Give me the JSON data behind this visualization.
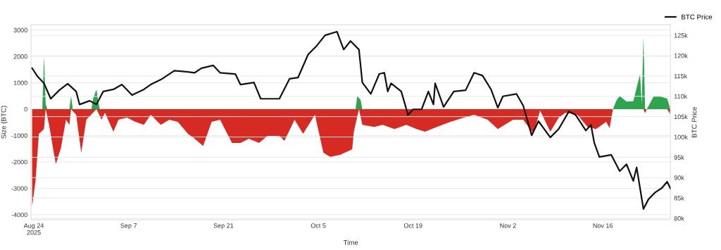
{
  "chart_data": {
    "type": "area",
    "xlabel": "Time",
    "ylabel": "Size (BTC)",
    "y2label": "BTC Price",
    "xlim": [
      "2025-08-23T14:00",
      "2025-11-26T00:00"
    ],
    "xticks": [
      {
        "value": "2025-08-24",
        "label": "Aug 24\n2025"
      },
      {
        "value": "2025-09-07",
        "label": "Sep 7"
      },
      {
        "value": "2025-09-21",
        "label": "Sep 21"
      },
      {
        "value": "2025-10-05",
        "label": "Oct 5"
      },
      {
        "value": "2025-10-19",
        "label": "Oct 19"
      },
      {
        "value": "2025-11-02",
        "label": "Nov 2"
      },
      {
        "value": "2025-11-16",
        "label": "Nov 16"
      }
    ],
    "ylim": [
      -4190,
      3200
    ],
    "yticks": [
      -4000,
      -3000,
      -2000,
      -1000,
      0,
      1000,
      2000,
      3000
    ],
    "y2lim": [
      79650,
      127600
    ],
    "y2ticks": [
      {
        "value": 80000,
        "label": "80k"
      },
      {
        "value": 85000,
        "label": "85k"
      },
      {
        "value": 90000,
        "label": "90k"
      },
      {
        "value": 95000,
        "label": "95k"
      },
      {
        "value": 100000,
        "label": "100k"
      },
      {
        "value": 105000,
        "label": "105k"
      },
      {
        "value": 110000,
        "label": "110k"
      },
      {
        "value": 115000,
        "label": "115k"
      },
      {
        "value": 120000,
        "label": "120k"
      },
      {
        "value": 125000,
        "label": "125k"
      }
    ],
    "grid": "y",
    "legend": "top right",
    "marker": "none",
    "line_style": "solid",
    "series": [
      {
        "color": "#d62a22",
        "x": [
          "2025-08-23T18:00",
          "2025-08-24T06:00",
          "2025-08-24T18:00",
          "2025-08-25T12:00",
          "2025-08-25T18:00",
          "2025-08-26T06:00",
          "2025-08-27T00:00",
          "2025-08-27T06:00",
          "2025-08-28T00:00",
          "2025-08-28T18:00",
          "2025-08-29T06:00",
          "2025-08-29T12:00",
          "2025-08-30T06:00",
          "2025-08-31T00:00",
          "2025-08-31T18:00",
          "2025-09-01T18:00",
          "2025-09-02T06:00",
          "2025-09-03T00:00",
          "2025-09-03T12:00",
          "2025-09-04T18:00",
          "2025-09-05T12:00",
          "2025-09-06T18:00",
          "2025-09-08T00:00",
          "2025-09-09T06:00",
          "2025-09-10T06:00",
          "2025-09-11T18:00",
          "2025-09-13T00:00",
          "2025-09-14T06:00",
          "2025-09-15T18:00",
          "2025-09-16T18:00",
          "2025-09-18T00:00",
          "2025-09-19T06:00",
          "2025-09-20T12:00",
          "2025-09-22T06:00",
          "2025-09-23T12:00",
          "2025-09-24T18:00",
          "2025-09-26T06:00",
          "2025-09-27T12:00",
          "2025-09-29T06:00",
          "2025-09-30T00:00",
          "2025-10-01T12:00",
          "2025-10-02T18:00",
          "2025-10-04T12:00",
          "2025-10-05T18:00",
          "2025-10-06T18:00",
          "2025-10-08T06:00",
          "2025-10-10T00:00",
          "2025-10-10T06:00",
          "2025-10-11T00:00",
          "2025-10-11T12:00",
          "2025-10-13T06:00",
          "2025-10-14T12:00",
          "2025-10-16T06:00",
          "2025-10-18T00:00",
          "2025-10-19T12:00",
          "2025-10-20T18:00",
          "2025-10-22T12:00",
          "2025-10-24T12:00",
          "2025-10-26T12:00",
          "2025-10-28T00:00",
          "2025-10-30T00:00",
          "2025-10-31T12:00",
          "2025-11-02T18:00",
          "2025-11-04T06:00",
          "2025-11-05T18:00",
          "2025-11-06T18:00",
          "2025-11-08T06:00",
          "2025-11-09T12:00",
          "2025-11-10T12:00",
          "2025-11-12T06:00",
          "2025-11-13T18:00",
          "2025-11-15T00:00",
          "2025-11-16T12:00",
          "2025-11-17T00:00",
          "2025-11-17T12:00",
          "2025-11-22T00:00",
          "2025-11-22T06:00",
          "2025-11-22T12:00",
          "2025-11-25T12:00",
          "2025-11-26T00:00"
        ],
        "values": [
          -3680,
          -2720,
          -930,
          -750,
          0,
          -590,
          -1730,
          -2080,
          -1470,
          -400,
          -590,
          0,
          -210,
          -1650,
          -400,
          -130,
          0,
          -400,
          -130,
          -850,
          -400,
          -320,
          -480,
          -590,
          -210,
          -590,
          -400,
          -480,
          -930,
          -1120,
          -1390,
          -480,
          -400,
          -1280,
          -1280,
          -1120,
          -1280,
          -1010,
          -1010,
          -1200,
          -400,
          -930,
          -210,
          -1650,
          -1810,
          -1730,
          -1520,
          -850,
          0,
          -590,
          -670,
          -590,
          -750,
          -590,
          -750,
          -850,
          -670,
          -480,
          -320,
          -210,
          -400,
          -750,
          -400,
          -400,
          -930,
          -50,
          -850,
          -320,
          -130,
          -210,
          -670,
          -750,
          -480,
          -720,
          0,
          0,
          -150,
          0,
          0,
          -200
        ]
      },
      {
        "color": "#2ea44f",
        "x": [
          "2025-08-25T06:00",
          "2025-08-25T12:00",
          "2025-08-25T18:00",
          "2025-08-26T00:00",
          "2025-08-29T06:00",
          "2025-08-29T12:00",
          "2025-08-29T18:00",
          "2025-09-01T12:00",
          "2025-09-01T18:00",
          "2025-09-02T06:00",
          "2025-09-02T12:00",
          "2025-09-02T18:00",
          "2025-10-10T12:00",
          "2025-10-10T18:00",
          "2025-10-11T06:00",
          "2025-10-11T12:00",
          "2025-11-17T12:00",
          "2025-11-18T00:00",
          "2025-11-18T12:00",
          "2025-11-19T12:00",
          "2025-11-20T12:00",
          "2025-11-21T12:00",
          "2025-11-21T18:00",
          "2025-11-22T00:00",
          "2025-11-22T06:00",
          "2025-11-22T12:00",
          "2025-11-23T12:00",
          "2025-11-24T12:00",
          "2025-11-25T12:00",
          "2025-11-26T00:00"
        ],
        "values": [
          0,
          2000,
          200,
          0,
          0,
          500,
          0,
          0,
          400,
          750,
          300,
          0,
          0,
          500,
          350,
          0,
          0,
          320,
          500,
          290,
          300,
          1330,
          200,
          2750,
          0,
          0,
          480,
          480,
          400,
          0
        ]
      },
      {
        "type": "line",
        "name": "BTC Price",
        "color": "#111111",
        "axis": "y2",
        "x": [
          "2025-08-23T18:00",
          "2025-08-24T12:00",
          "2025-08-25T12:00",
          "2025-08-26T12:00",
          "2025-08-27T18:00",
          "2025-08-29T00:00",
          "2025-08-30T06:00",
          "2025-08-30T18:00",
          "2025-09-01T06:00",
          "2025-09-02T06:00",
          "2025-09-03T06:00",
          "2025-09-04T18:00",
          "2025-09-06T00:00",
          "2025-09-07T12:00",
          "2025-09-09T06:00",
          "2025-09-10T06:00",
          "2025-09-11T18:00",
          "2025-09-13T18:00",
          "2025-09-15T18:00",
          "2025-09-16T18:00",
          "2025-09-17T18:00",
          "2025-09-19T12:00",
          "2025-09-20T12:00",
          "2025-09-22T18:00",
          "2025-09-23T12:00",
          "2025-09-25T12:00",
          "2025-09-26T12:00",
          "2025-09-29T06:00",
          "2025-09-30T18:00",
          "2025-10-02T00:00",
          "2025-10-03T12:00",
          "2025-10-04T18:00",
          "2025-10-06T00:00",
          "2025-10-07T18:00",
          "2025-10-08T18:00",
          "2025-10-09T18:00",
          "2025-10-11T00:00",
          "2025-10-11T12:00",
          "2025-10-12T18:00",
          "2025-10-14T00:00",
          "2025-10-14T18:00",
          "2025-10-15T06:00",
          "2025-10-15T18:00",
          "2025-10-17T06:00",
          "2025-10-18T06:00",
          "2025-10-19T00:00",
          "2025-10-20T06:00",
          "2025-10-21T06:00",
          "2025-10-22T00:00",
          "2025-10-22T06:00",
          "2025-10-23T12:00",
          "2025-10-25T00:00",
          "2025-10-26T18:00",
          "2025-10-28T00:00",
          "2025-10-29T06:00",
          "2025-10-30T12:00",
          "2025-10-31T12:00",
          "2025-11-01T06:00",
          "2025-11-03T06:00",
          "2025-11-04T06:00",
          "2025-11-05T12:00",
          "2025-11-06T12:00",
          "2025-11-08T06:00",
          "2025-11-09T12:00",
          "2025-11-11T00:00",
          "2025-11-12T00:00",
          "2025-11-13T12:00",
          "2025-11-14T06:00",
          "2025-11-14T18:00",
          "2025-11-15T12:00",
          "2025-11-17T06:00",
          "2025-11-18T12:00",
          "2025-11-19T12:00",
          "2025-11-20T12:00",
          "2025-11-21T00:00",
          "2025-11-22T00:00",
          "2025-11-22T18:00",
          "2025-11-23T18:00",
          "2025-11-24T18:00",
          "2025-11-25T12:00",
          "2025-11-26T00:00"
        ],
        "values": [
          116900,
          115000,
          113200,
          109400,
          111500,
          113100,
          111200,
          108000,
          108900,
          108000,
          111200,
          111700,
          112900,
          110300,
          111700,
          112900,
          114100,
          116300,
          116000,
          115800,
          116900,
          117600,
          115800,
          115500,
          112900,
          113400,
          109400,
          109400,
          114300,
          114600,
          120300,
          122400,
          125000,
          125900,
          121500,
          123600,
          121500,
          113400,
          110600,
          115500,
          115800,
          111200,
          113200,
          111200,
          105400,
          106800,
          106800,
          111200,
          108000,
          113200,
          107400,
          111200,
          111500,
          115800,
          115100,
          111700,
          107200,
          110000,
          110600,
          107700,
          100400,
          103900,
          99900,
          102000,
          106300,
          105400,
          101600,
          103000,
          98500,
          95100,
          95600,
          91600,
          93300,
          89200,
          92500,
          82300,
          84700,
          86400,
          87500,
          89000,
          87300
        ]
      }
    ]
  }
}
